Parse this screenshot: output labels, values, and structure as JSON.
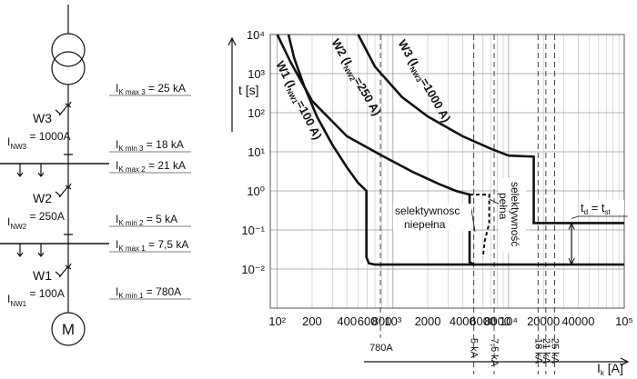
{
  "schematic": {
    "motor": "M",
    "breakers": [
      {
        "name": "W3",
        "symbol": "I",
        "sub": "NW3",
        "rest": " = 1000A"
      },
      {
        "name": "W2",
        "symbol": "I",
        "sub": "NW2",
        "rest": " = 250A"
      },
      {
        "name": "W1",
        "symbol": "I",
        "sub": "NW1",
        "rest": " = 100A"
      }
    ],
    "currents": [
      {
        "symbol": "I",
        "sub": "K max 3",
        "rest": " = 25 kA"
      },
      {
        "symbol": "I",
        "sub": "K min 3",
        "rest": " = 18 kA"
      },
      {
        "symbol": "I",
        "sub": "K max 2",
        "rest": " = 21 kA"
      },
      {
        "symbol": "I",
        "sub": "K min 2",
        "rest": " = 5 kA"
      },
      {
        "symbol": "I",
        "sub": "K max 1",
        "rest": " = 7,5 kA"
      },
      {
        "symbol": "I",
        "sub": "K min 1",
        "rest": " = 780A"
      }
    ]
  },
  "chart_data": {
    "type": "line",
    "y_label": "t [s]",
    "x_label": {
      "symbol": "I",
      "sub": "k",
      "rest": " [A]"
    },
    "log_x": true,
    "log_y": true,
    "grid": true,
    "xlim": [
      87,
      100000
    ],
    "ylim": [
      0.001,
      10000
    ],
    "xticks": [
      {
        "value": 100,
        "label": "10²"
      },
      200,
      400,
      600,
      800,
      {
        "value": 1000,
        "label": "10³"
      },
      2000,
      4000,
      6000,
      8000,
      {
        "value": 10000,
        "label": "10⁴"
      },
      20000,
      40000,
      {
        "value": 100000,
        "label": "10⁵"
      }
    ],
    "xminor": [
      300,
      500,
      700,
      900,
      3000,
      5000,
      7000,
      9000,
      30000,
      50000,
      60000,
      70000,
      80000,
      90000
    ],
    "yticks": [
      {
        "value": 10000,
        "label": "10⁴"
      },
      {
        "value": 1000,
        "label": "10³"
      },
      {
        "value": 100,
        "label": "10²"
      },
      {
        "value": 10,
        "label": "10¹"
      },
      {
        "value": 1,
        "label": "10⁰"
      },
      {
        "value": 0.1,
        "label": "10⁻¹"
      },
      {
        "value": 0.01,
        "label": "10⁻²"
      }
    ],
    "series": [
      {
        "name": "W1",
        "color": "#111",
        "x": [
          125,
          140,
          170,
          220,
          300,
          400,
          500,
          590,
          590,
          620,
          700,
          100000
        ],
        "values": [
          10000,
          2500,
          500,
          80,
          15,
          4,
          1.6,
          1,
          0.02,
          0.014,
          0.013,
          0.013
        ]
      },
      {
        "name": "W2",
        "color": "#111",
        "x": [
          100,
          130,
          200,
          400,
          800,
          1500,
          2500,
          3500,
          4600,
          4600,
          5000
        ],
        "values": [
          10000,
          2000,
          200,
          25,
          8,
          3,
          1.5,
          1,
          0.8,
          0.015,
          0.013
        ]
      },
      {
        "name": "W3",
        "color": "#111",
        "x": [
          500,
          700,
          1200,
          2000,
          4000,
          7000,
          10000,
          16500,
          16500,
          100000
        ],
        "values": [
          10000,
          1500,
          250,
          80,
          25,
          12,
          8,
          7.5,
          0.15,
          0.15
        ]
      },
      {
        "color": "#111",
        "dashed": true,
        "x": [
          4600,
          6800,
          6800,
          6200,
          6000
        ],
        "values": [
          0.8,
          0.8,
          0.15,
          0.05,
          0.02
        ]
      }
    ],
    "vlines": [
      {
        "value": 780,
        "label": "780A"
      },
      {
        "value": 5000,
        "label": "5 kA"
      },
      {
        "value": 7500,
        "label": "7,5 kA"
      },
      {
        "value": 18000,
        "label": "18 kA"
      },
      {
        "value": 21000,
        "label": "21 kA"
      },
      {
        "value": 25000,
        "label": "25 kA"
      }
    ],
    "annotations": [
      {
        "text": "W1 (I",
        "sub": "NW1",
        "rest": "=100 A)"
      },
      {
        "text": "W2 (I",
        "sub": "NW2",
        "rest": "=250 A)"
      },
      {
        "text": "W3 (I",
        "sub": "NW3",
        "rest": "=1000 A)"
      },
      {
        "text": "selektywnosc",
        "line2": "niepełna"
      },
      {
        "text": "selektywność",
        "line2": "pełna"
      },
      {
        "text": "t",
        "sub": "d",
        "mid": " = t",
        "sub2": "st"
      }
    ],
    "td_arrow": {
      "x": 35000,
      "from": 0.013,
      "to": 0.15
    }
  }
}
